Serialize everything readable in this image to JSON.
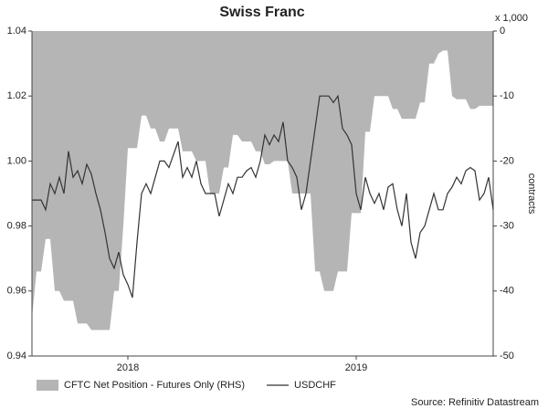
{
  "chart_data": {
    "type": "line",
    "title": "Swiss Franc",
    "y2_unit": "x 1,000",
    "y2label": "contracts",
    "source": "Source: Refinitiv Datastream",
    "categories": [
      null,
      null,
      null,
      null,
      null,
      null,
      null,
      null,
      null,
      null,
      null,
      null,
      null,
      null,
      null,
      null,
      null,
      null,
      null,
      null,
      null,
      "2018",
      null,
      null,
      null,
      null,
      null,
      null,
      null,
      null,
      null,
      null,
      null,
      null,
      null,
      null,
      null,
      null,
      null,
      null,
      null,
      null,
      null,
      null,
      null,
      null,
      null,
      null,
      null,
      null,
      null,
      null,
      null,
      null,
      null,
      null,
      null,
      null,
      null,
      null,
      null,
      null,
      null,
      null,
      null,
      null,
      null,
      null,
      null,
      null,
      null,
      "2019",
      null,
      null,
      null,
      null,
      null,
      null,
      null,
      null,
      null,
      null,
      null,
      null,
      null,
      null,
      null,
      null,
      null,
      null,
      null,
      null,
      null,
      null,
      null,
      null,
      null,
      null,
      null,
      null,
      null,
      null
    ],
    "series": [
      {
        "name": "CFTC Net Position - Futures Only (RHS)",
        "type": "area",
        "axis": "y2",
        "color": "#b5b5b5",
        "values": [
          -44,
          -37,
          -37,
          -32,
          -32,
          -40,
          -40,
          -41.5,
          -41.5,
          -41.5,
          -45,
          -45,
          -45,
          -46,
          -46,
          -46,
          -46,
          -46,
          -40,
          -40,
          -30,
          -18,
          -18,
          -18,
          -13,
          -13,
          -15,
          -15,
          -17,
          -17,
          -15,
          -15,
          -15,
          -18.5,
          -18.5,
          -18.5,
          -20,
          -20,
          -20,
          -25,
          -25,
          -25,
          -21,
          -21,
          -16,
          -16,
          -17,
          -17,
          -17,
          -18.5,
          -18.5,
          -20.5,
          -20.5,
          -20,
          -20,
          -20,
          -20,
          -25,
          -25,
          -25,
          -25,
          -25,
          -37,
          -37,
          -40,
          -40,
          -40,
          -37,
          -37,
          -37,
          -28,
          -28,
          -28,
          -15.5,
          -15.5,
          -10,
          -10,
          -10,
          -10,
          -12,
          -12,
          -13.5,
          -13.5,
          -13.5,
          -13.5,
          -11,
          -11,
          -5,
          -5,
          -3.5,
          -3,
          -3,
          -10,
          -10.5,
          -10.5,
          -10.5,
          -12,
          -12,
          -11.5,
          -11.5,
          -11.5,
          -11.5
        ]
      },
      {
        "name": "USDCHF",
        "type": "line",
        "axis": "y",
        "color": "#333333",
        "values": [
          0.988,
          0.988,
          0.988,
          0.985,
          0.993,
          0.99,
          0.995,
          0.99,
          1.003,
          0.995,
          0.997,
          0.993,
          0.999,
          0.996,
          0.99,
          0.985,
          0.978,
          0.97,
          0.967,
          0.972,
          0.965,
          0.962,
          0.958,
          0.975,
          0.99,
          0.993,
          0.99,
          0.995,
          1.0,
          1.0,
          0.998,
          1.002,
          1.006,
          0.995,
          0.998,
          0.995,
          1.0,
          0.993,
          0.99,
          0.99,
          0.99,
          0.983,
          0.988,
          0.993,
          0.99,
          0.995,
          0.995,
          0.997,
          0.998,
          0.995,
          1.0,
          1.008,
          1.005,
          1.008,
          1.006,
          1.012,
          1.0,
          0.998,
          0.995,
          0.985,
          0.99,
          1.0,
          1.01,
          1.02,
          1.02,
          1.02,
          1.018,
          1.02,
          1.01,
          1.008,
          1.005,
          0.99,
          0.985,
          0.995,
          0.99,
          0.987,
          0.99,
          0.985,
          0.992,
          0.993,
          0.985,
          0.98,
          0.99,
          0.975,
          0.97,
          0.978,
          0.98,
          0.985,
          0.99,
          0.985,
          0.985,
          0.99,
          0.992,
          0.995,
          0.993,
          0.997,
          0.998,
          0.997,
          0.988,
          0.99,
          0.995,
          0.985
        ]
      }
    ],
    "ylim": [
      0.94,
      1.04
    ],
    "yticks": [
      0.94,
      0.96,
      0.98,
      {
        "value": 1.0,
        "label": "1.00"
      },
      1.02,
      1.04
    ],
    "y2lim": [
      -50,
      0
    ],
    "y2ticks": [
      -50,
      -40,
      -30,
      -20,
      -10,
      0
    ],
    "grid": false
  }
}
